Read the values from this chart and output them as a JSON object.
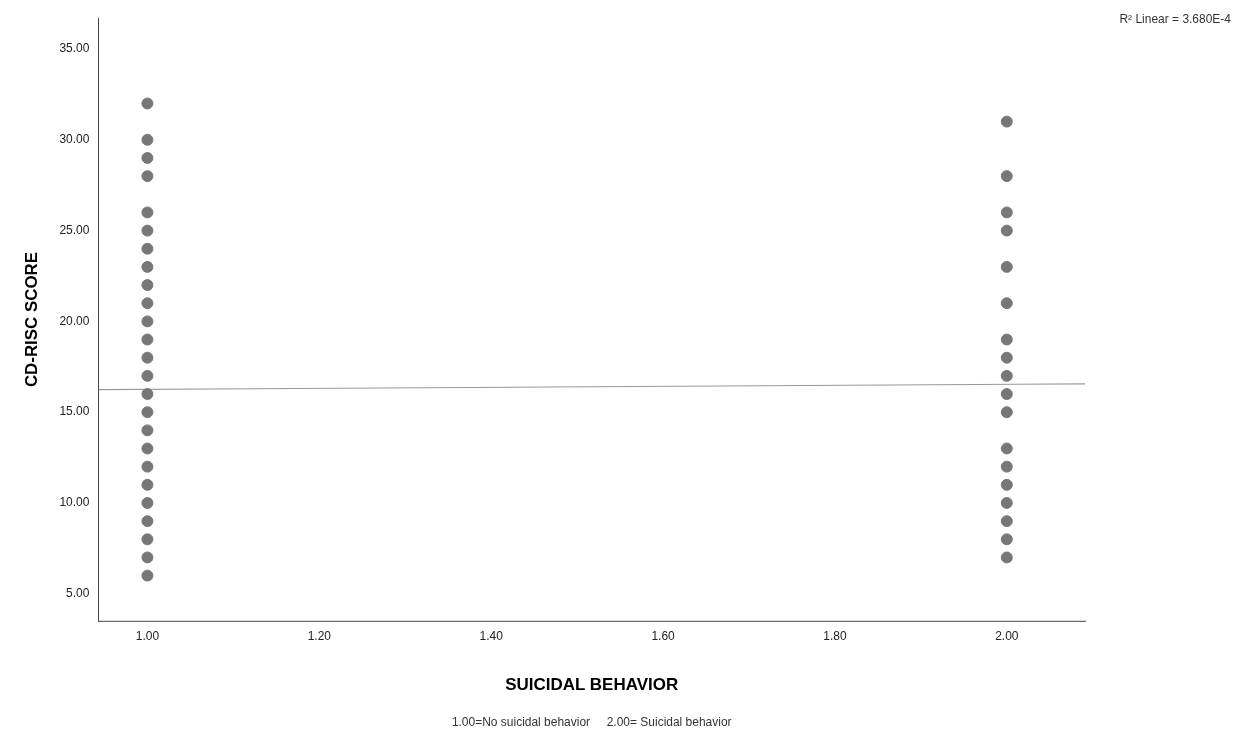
{
  "chart_data": {
    "type": "scatter",
    "xlabel": "SUICIDAL BEHAVIOR",
    "ylabel": "CD-RISC SCORE",
    "xlim": [
      0.943,
      2.091
    ],
    "xticks": [
      {
        "value": 1,
        "label": "1.00"
      },
      {
        "value": 1.2,
        "label": "1.20"
      },
      {
        "value": 1.4,
        "label": "1.40"
      },
      {
        "value": 1.6,
        "label": "1.60"
      },
      {
        "value": 1.8,
        "label": "1.80"
      },
      {
        "value": 2,
        "label": "2.00"
      }
    ],
    "ylim": [
      3.5,
      36.7
    ],
    "yticks": [
      {
        "value": 5,
        "label": "5.00"
      },
      {
        "value": 10,
        "label": "10.00"
      },
      {
        "value": 15,
        "label": "15.00"
      },
      {
        "value": 20,
        "label": "20.00"
      },
      {
        "value": 25,
        "label": "25.00"
      },
      {
        "value": 30,
        "label": "30.00"
      },
      {
        "value": 35,
        "label": "35.00"
      }
    ],
    "grid": false,
    "legend": false,
    "marker": "circle",
    "series": [
      {
        "color": "#777777",
        "x": [
          1,
          1,
          1,
          1,
          1,
          1,
          1,
          1,
          1,
          1,
          1,
          1,
          1,
          1,
          1,
          1,
          1,
          1,
          1,
          1,
          1,
          1,
          1,
          1,
          2,
          2,
          2,
          2,
          2,
          2,
          2,
          2,
          2,
          2,
          2,
          2,
          2,
          2,
          2,
          2,
          2,
          2
        ],
        "values": [
          32,
          30,
          29,
          28,
          26,
          25,
          24,
          23,
          22,
          21,
          20,
          19,
          18,
          17,
          16,
          15,
          14,
          13,
          12,
          11,
          10,
          9,
          8,
          7,
          31,
          28,
          26,
          25,
          23,
          21,
          19,
          18,
          17,
          16,
          15,
          13,
          12,
          11,
          10,
          9,
          8,
          7
        ]
      },
      {
        "color": "#777777",
        "x": [
          1
        ],
        "values": [
          6
        ]
      },
      {
        "type": "line",
        "color": "#999999",
        "marker": "none",
        "x": [
          0.943,
          2.091
        ],
        "values": [
          16.24,
          16.56
        ]
      }
    ],
    "annotations": [
      "R² Linear = 3.680E-4",
      "1.00=No suicidal behavior     2.00= Suicidal behavior"
    ]
  }
}
